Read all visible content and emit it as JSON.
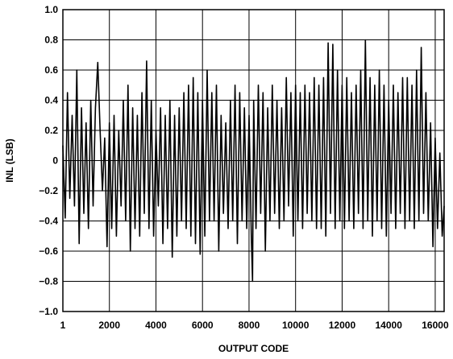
{
  "chart_data": {
    "type": "line",
    "title": "",
    "xlabel": "OUTPUT CODE",
    "ylabel": "INL (LSB)",
    "xlim": [
      1,
      16383
    ],
    "ylim": [
      -1.0,
      1.0
    ],
    "grid": true,
    "x_ticks": [
      1,
      2000,
      4000,
      6000,
      8000,
      10000,
      12000,
      14000,
      16000
    ],
    "x_tick_labels": [
      "1",
      "2000",
      "4000",
      "6000",
      "8000",
      "10000",
      "12000",
      "14000",
      "16000"
    ],
    "y_ticks": [
      1.0,
      0.8,
      0.6,
      0.4,
      0.2,
      0,
      -0.2,
      -0.4,
      -0.6,
      -0.8,
      -1.0
    ],
    "y_tick_labels": [
      "1.0",
      "0.8",
      "0.6",
      "0.4",
      "0.2",
      "0",
      "−0.2",
      "−0.4",
      "−0.6",
      "−0.8",
      "−1.0"
    ],
    "series": [
      {
        "points": [
          [
            1,
            0.1
          ],
          [
            100,
            -0.38
          ],
          [
            200,
            0.45
          ],
          [
            300,
            -0.25
          ],
          [
            400,
            0.3
          ],
          [
            500,
            -0.3
          ],
          [
            600,
            0.6
          ],
          [
            700,
            -0.55
          ],
          [
            800,
            0.35
          ],
          [
            900,
            -0.35
          ],
          [
            1000,
            0.25
          ],
          [
            1100,
            -0.45
          ],
          [
            1200,
            0.4
          ],
          [
            1300,
            -0.3
          ],
          [
            1400,
            0.35
          ],
          [
            1500,
            0.65
          ],
          [
            1600,
            0.2
          ],
          [
            1700,
            -0.2
          ],
          [
            1800,
            0.15
          ],
          [
            1900,
            -0.57
          ],
          [
            2000,
            0.25
          ],
          [
            2100,
            -0.45
          ],
          [
            2200,
            0.3
          ],
          [
            2300,
            -0.5
          ],
          [
            2400,
            0.2
          ],
          [
            2500,
            -0.3
          ],
          [
            2600,
            0.4
          ],
          [
            2700,
            -0.4
          ],
          [
            2800,
            0.5
          ],
          [
            2900,
            -0.6
          ],
          [
            3000,
            0.35
          ],
          [
            3100,
            -0.45
          ],
          [
            3200,
            0.3
          ],
          [
            3300,
            -0.5
          ],
          [
            3400,
            0.45
          ],
          [
            3500,
            -0.35
          ],
          [
            3600,
            0.66
          ],
          [
            3700,
            -0.45
          ],
          [
            3800,
            0.4
          ],
          [
            3900,
            -0.5
          ],
          [
            4000,
            0.2
          ],
          [
            4100,
            -0.3
          ],
          [
            4200,
            0.35
          ],
          [
            4300,
            -0.55
          ],
          [
            4400,
            0.3
          ],
          [
            4500,
            -0.45
          ],
          [
            4600,
            0.4
          ],
          [
            4700,
            -0.64
          ],
          [
            4800,
            0.3
          ],
          [
            4900,
            -0.5
          ],
          [
            5000,
            0.35
          ],
          [
            5100,
            -0.4
          ],
          [
            5200,
            0.45
          ],
          [
            5300,
            -0.45
          ],
          [
            5400,
            0.5
          ],
          [
            5500,
            -0.5
          ],
          [
            5600,
            0.55
          ],
          [
            5700,
            -0.55
          ],
          [
            5800,
            0.45
          ],
          [
            5900,
            -0.62
          ],
          [
            6000,
            0.4
          ],
          [
            6100,
            -0.5
          ],
          [
            6200,
            0.6
          ],
          [
            6300,
            -0.4
          ],
          [
            6400,
            0.45
          ],
          [
            6500,
            -0.4
          ],
          [
            6600,
            0.5
          ],
          [
            6700,
            -0.6
          ],
          [
            6800,
            0.3
          ],
          [
            6900,
            -0.35
          ],
          [
            7000,
            0.25
          ],
          [
            7100,
            -0.45
          ],
          [
            7200,
            0.4
          ],
          [
            7300,
            -0.4
          ],
          [
            7400,
            0.5
          ],
          [
            7500,
            -0.55
          ],
          [
            7600,
            0.45
          ],
          [
            7700,
            -0.4
          ],
          [
            7800,
            0.35
          ],
          [
            7900,
            -0.45
          ],
          [
            8000,
            0.3
          ],
          [
            8100,
            -0.5
          ],
          [
            8150,
            -0.8
          ],
          [
            8200,
            0.4
          ],
          [
            8300,
            -0.45
          ],
          [
            8400,
            0.5
          ],
          [
            8500,
            -0.35
          ],
          [
            8600,
            0.45
          ],
          [
            8700,
            -0.6
          ],
          [
            8800,
            0.35
          ],
          [
            8900,
            -0.4
          ],
          [
            9000,
            0.5
          ],
          [
            9100,
            -0.35
          ],
          [
            9200,
            0.4
          ],
          [
            9300,
            -0.45
          ],
          [
            9400,
            0.35
          ],
          [
            9500,
            -0.4
          ],
          [
            9600,
            0.55
          ],
          [
            9700,
            -0.3
          ],
          [
            9800,
            0.45
          ],
          [
            9900,
            -0.5
          ],
          [
            10000,
            0.5
          ],
          [
            10100,
            -0.4
          ],
          [
            10200,
            0.45
          ],
          [
            10300,
            -0.45
          ],
          [
            10400,
            0.5
          ],
          [
            10500,
            -0.35
          ],
          [
            10600,
            0.45
          ],
          [
            10700,
            -0.4
          ],
          [
            10800,
            0.55
          ],
          [
            10900,
            -0.45
          ],
          [
            11000,
            0.5
          ],
          [
            11100,
            -0.45
          ],
          [
            11200,
            0.55
          ],
          [
            11300,
            -0.5
          ],
          [
            11400,
            0.78
          ],
          [
            11500,
            -0.35
          ],
          [
            11600,
            0.77
          ],
          [
            11700,
            -0.45
          ],
          [
            11800,
            0.6
          ],
          [
            11900,
            -0.4
          ],
          [
            12000,
            0.5
          ],
          [
            12100,
            -0.45
          ],
          [
            12200,
            0.55
          ],
          [
            12300,
            -0.4
          ],
          [
            12400,
            0.45
          ],
          [
            12500,
            -0.45
          ],
          [
            12600,
            0.5
          ],
          [
            12700,
            -0.35
          ],
          [
            12800,
            0.6
          ],
          [
            12900,
            -0.45
          ],
          [
            13000,
            0.8
          ],
          [
            13100,
            -0.4
          ],
          [
            13200,
            0.55
          ],
          [
            13300,
            -0.5
          ],
          [
            13400,
            0.5
          ],
          [
            13500,
            -0.4
          ],
          [
            13600,
            0.6
          ],
          [
            13700,
            -0.45
          ],
          [
            13800,
            0.5
          ],
          [
            13900,
            -0.5
          ],
          [
            14000,
            0.4
          ],
          [
            14100,
            -0.35
          ],
          [
            14200,
            0.5
          ],
          [
            14300,
            -0.45
          ],
          [
            14400,
            0.45
          ],
          [
            14500,
            -0.35
          ],
          [
            14600,
            0.55
          ],
          [
            14700,
            -0.45
          ],
          [
            14800,
            0.55
          ],
          [
            14900,
            -0.4
          ],
          [
            15000,
            0.5
          ],
          [
            15100,
            -0.45
          ],
          [
            15200,
            0.6
          ],
          [
            15300,
            -0.4
          ],
          [
            15400,
            0.75
          ],
          [
            15500,
            -0.35
          ],
          [
            15600,
            0.45
          ],
          [
            15700,
            -0.4
          ],
          [
            15800,
            0.25
          ],
          [
            15900,
            -0.57
          ],
          [
            16000,
            0.15
          ],
          [
            16100,
            -0.45
          ],
          [
            16200,
            0.05
          ],
          [
            16300,
            -0.5
          ],
          [
            16383,
            -0.3
          ]
        ]
      }
    ]
  }
}
